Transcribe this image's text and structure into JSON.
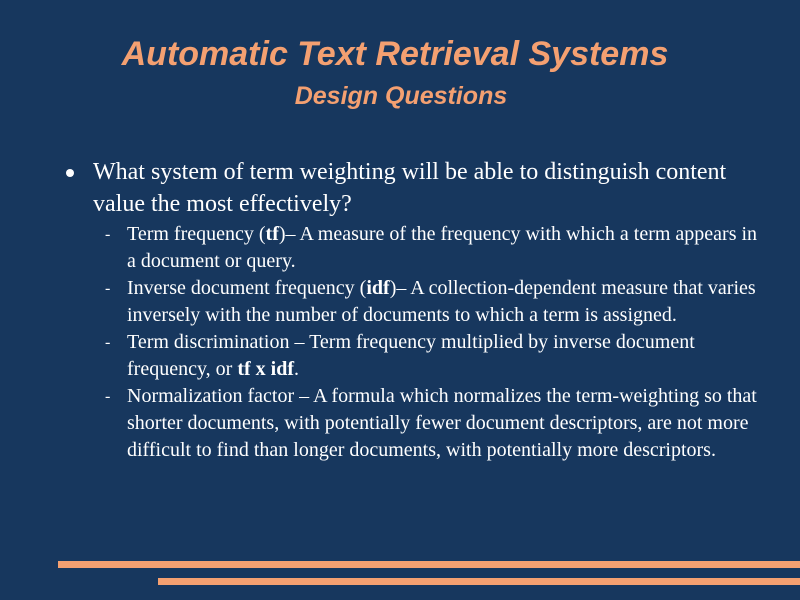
{
  "slide": {
    "title": "Automatic Text Retrieval Systems",
    "subtitle": "Design Questions",
    "bullet": {
      "text": "What system of term weighting will be able to distinguish content value the most effectively?"
    },
    "subitems": [
      {
        "term": "Term frequency (",
        "term_bold": "tf",
        "term_after": ")",
        "sep": "– ",
        "desc": "A measure of the frequency with which a term appears in a document or query."
      },
      {
        "term": "Inverse document frequency (",
        "term_bold": "idf",
        "term_after": ")",
        "sep": "– ",
        "desc": "A collection-dependent measure that varies inversely with the number of documents to which a term is assigned."
      },
      {
        "term": "Term discrimination",
        "sep": " – ",
        "desc": "Term frequency multiplied by inverse document frequency, or ",
        "desc_bold": "tf x idf",
        "desc_after": "."
      },
      {
        "term": "Normalization factor",
        "sep": " – ",
        "desc": "A formula which normalizes the term-weighting so that shorter documents, with potentially fewer document descriptors, are not more difficult to find than longer documents, with potentially more descriptors."
      }
    ],
    "colors": {
      "background": "#17375e",
      "accent": "#f4a071",
      "text": "#ffffff"
    }
  }
}
